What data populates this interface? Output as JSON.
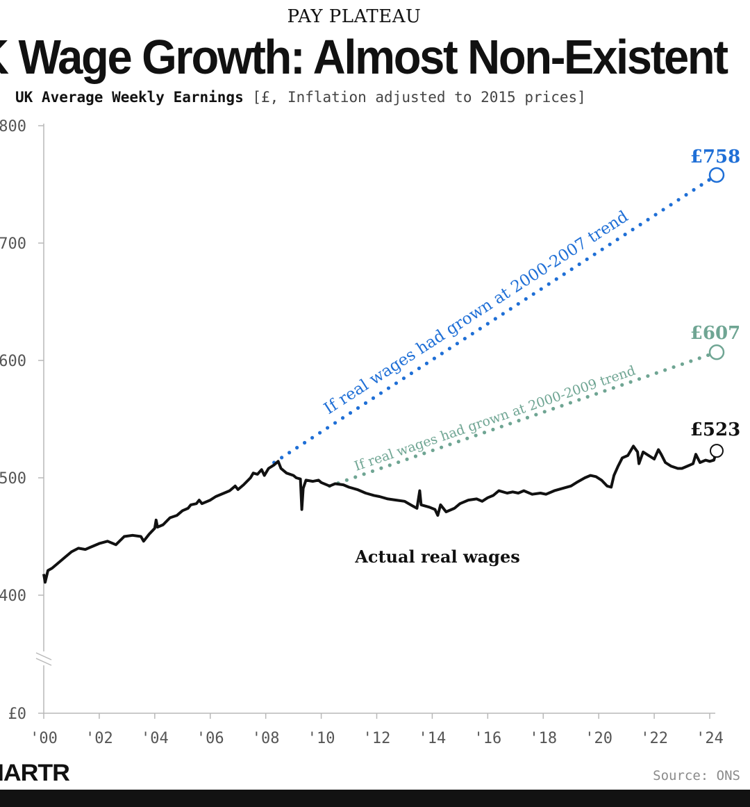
{
  "header": {
    "kicker": "PAY PLATEAU",
    "title": "K Wage Growth: Almost Non-Existent",
    "subtitle_bold": "UK Average Weekly Earnings",
    "subtitle_unit": "[£, Inflation adjusted to 2015 prices]"
  },
  "footer": {
    "logo": "IARTR",
    "source": "Source: ONS"
  },
  "colors": {
    "actual": "#111111",
    "trend_2007": "#1f6fd6",
    "trend_2009": "#6fa593",
    "axis": "#b8b8b8",
    "tick_text": "#555555"
  },
  "chart_data": {
    "type": "line",
    "title": "UK Average Weekly Earnings",
    "y_ticks": [
      {
        "value": 0,
        "label": "£0"
      },
      {
        "value": 400,
        "label": "400"
      },
      {
        "value": 500,
        "label": "500"
      },
      {
        "value": 600,
        "label": "600"
      },
      {
        "value": 700,
        "label": "700"
      },
      {
        "value": 800,
        "label": "800"
      }
    ],
    "y_axis_break": "between 0 and 400",
    "x_ticks": [
      {
        "value": 2000,
        "label": "'00"
      },
      {
        "value": 2002,
        "label": "'02"
      },
      {
        "value": 2004,
        "label": "'04"
      },
      {
        "value": 2006,
        "label": "'06"
      },
      {
        "value": 2008,
        "label": "'08"
      },
      {
        "value": 2010,
        "label": "'10"
      },
      {
        "value": 2012,
        "label": "'12"
      },
      {
        "value": 2014,
        "label": "'14"
      },
      {
        "value": 2016,
        "label": "'16"
      },
      {
        "value": 2018,
        "label": "'18"
      },
      {
        "value": 2020,
        "label": "'20"
      },
      {
        "value": 2022,
        "label": "'22"
      },
      {
        "value": 2024,
        "label": "'24"
      }
    ],
    "xlim": [
      2000,
      2024.3
    ],
    "grid": false,
    "series": [
      {
        "name": "Actual real wages",
        "style": "solid",
        "end_label": "£523",
        "points": [
          [
            2000.0,
            418
          ],
          [
            2000.05,
            411
          ],
          [
            2000.15,
            421
          ],
          [
            2000.3,
            423
          ],
          [
            2000.5,
            427
          ],
          [
            2000.75,
            432
          ],
          [
            2001.0,
            437
          ],
          [
            2001.25,
            440
          ],
          [
            2001.5,
            439
          ],
          [
            2001.8,
            442
          ],
          [
            2002.0,
            444
          ],
          [
            2002.3,
            446
          ],
          [
            2002.6,
            443
          ],
          [
            2002.9,
            450
          ],
          [
            2003.2,
            451
          ],
          [
            2003.5,
            450
          ],
          [
            2003.6,
            446
          ],
          [
            2003.8,
            452
          ],
          [
            2004.0,
            457
          ],
          [
            2004.05,
            464
          ],
          [
            2004.1,
            458
          ],
          [
            2004.3,
            460
          ],
          [
            2004.55,
            466
          ],
          [
            2004.8,
            468
          ],
          [
            2005.0,
            472
          ],
          [
            2005.2,
            474
          ],
          [
            2005.3,
            477
          ],
          [
            2005.5,
            478
          ],
          [
            2005.6,
            481
          ],
          [
            2005.7,
            478
          ],
          [
            2006.0,
            481
          ],
          [
            2006.2,
            484
          ],
          [
            2006.5,
            487
          ],
          [
            2006.7,
            489
          ],
          [
            2006.9,
            493
          ],
          [
            2007.0,
            490
          ],
          [
            2007.2,
            494
          ],
          [
            2007.45,
            500
          ],
          [
            2007.55,
            504
          ],
          [
            2007.7,
            503
          ],
          [
            2007.85,
            507
          ],
          [
            2007.95,
            502
          ],
          [
            2008.1,
            508
          ],
          [
            2008.3,
            511
          ],
          [
            2008.45,
            514
          ],
          [
            2008.55,
            508
          ],
          [
            2008.75,
            504
          ],
          [
            2009.0,
            502
          ],
          [
            2009.1,
            500
          ],
          [
            2009.25,
            499
          ],
          [
            2009.3,
            473
          ],
          [
            2009.35,
            491
          ],
          [
            2009.45,
            498
          ],
          [
            2009.7,
            497
          ],
          [
            2009.9,
            498
          ],
          [
            2010.0,
            496
          ],
          [
            2010.3,
            493
          ],
          [
            2010.5,
            495
          ],
          [
            2010.8,
            494
          ],
          [
            2011.0,
            492
          ],
          [
            2011.3,
            490
          ],
          [
            2011.6,
            487
          ],
          [
            2011.9,
            485
          ],
          [
            2012.1,
            484
          ],
          [
            2012.4,
            482
          ],
          [
            2012.7,
            481
          ],
          [
            2013.0,
            480
          ],
          [
            2013.15,
            478
          ],
          [
            2013.3,
            476
          ],
          [
            2013.45,
            474
          ],
          [
            2013.55,
            489
          ],
          [
            2013.6,
            477
          ],
          [
            2013.9,
            475
          ],
          [
            2014.1,
            473
          ],
          [
            2014.2,
            468
          ],
          [
            2014.3,
            477
          ],
          [
            2014.5,
            471
          ],
          [
            2014.8,
            474
          ],
          [
            2015.0,
            478
          ],
          [
            2015.3,
            481
          ],
          [
            2015.6,
            482
          ],
          [
            2015.8,
            480
          ],
          [
            2016.0,
            483
          ],
          [
            2016.2,
            485
          ],
          [
            2016.4,
            489
          ],
          [
            2016.7,
            487
          ],
          [
            2016.9,
            488
          ],
          [
            2017.1,
            487
          ],
          [
            2017.3,
            489
          ],
          [
            2017.6,
            486
          ],
          [
            2017.9,
            487
          ],
          [
            2018.1,
            486
          ],
          [
            2018.4,
            489
          ],
          [
            2018.7,
            491
          ],
          [
            2019.0,
            493
          ],
          [
            2019.2,
            496
          ],
          [
            2019.5,
            500
          ],
          [
            2019.7,
            502
          ],
          [
            2019.9,
            501
          ],
          [
            2020.1,
            498
          ],
          [
            2020.3,
            493
          ],
          [
            2020.45,
            492
          ],
          [
            2020.55,
            502
          ],
          [
            2020.7,
            510
          ],
          [
            2020.85,
            517
          ],
          [
            2021.05,
            519
          ],
          [
            2021.25,
            527
          ],
          [
            2021.4,
            522
          ],
          [
            2021.45,
            512
          ],
          [
            2021.6,
            522
          ],
          [
            2021.8,
            519
          ],
          [
            2022.0,
            516
          ],
          [
            2022.15,
            524
          ],
          [
            2022.25,
            520
          ],
          [
            2022.4,
            513
          ],
          [
            2022.6,
            510
          ],
          [
            2022.85,
            508
          ],
          [
            2023.0,
            508
          ],
          [
            2023.2,
            510
          ],
          [
            2023.4,
            512
          ],
          [
            2023.5,
            520
          ],
          [
            2023.65,
            513
          ],
          [
            2023.85,
            515
          ],
          [
            2024.0,
            514
          ],
          [
            2024.15,
            515
          ],
          [
            2024.25,
            523
          ]
        ]
      },
      {
        "name": "If real wages had grown at 2000-2007 trend",
        "style": "dotted",
        "end_label": "£758",
        "points": [
          [
            2008.3,
            513
          ],
          [
            2024.25,
            758
          ]
        ]
      },
      {
        "name": "If real wages had grown at 2000-2009 trend",
        "style": "dotted",
        "end_label": "£607",
        "points": [
          [
            2010.3,
            493
          ],
          [
            2024.25,
            607
          ]
        ]
      }
    ]
  }
}
